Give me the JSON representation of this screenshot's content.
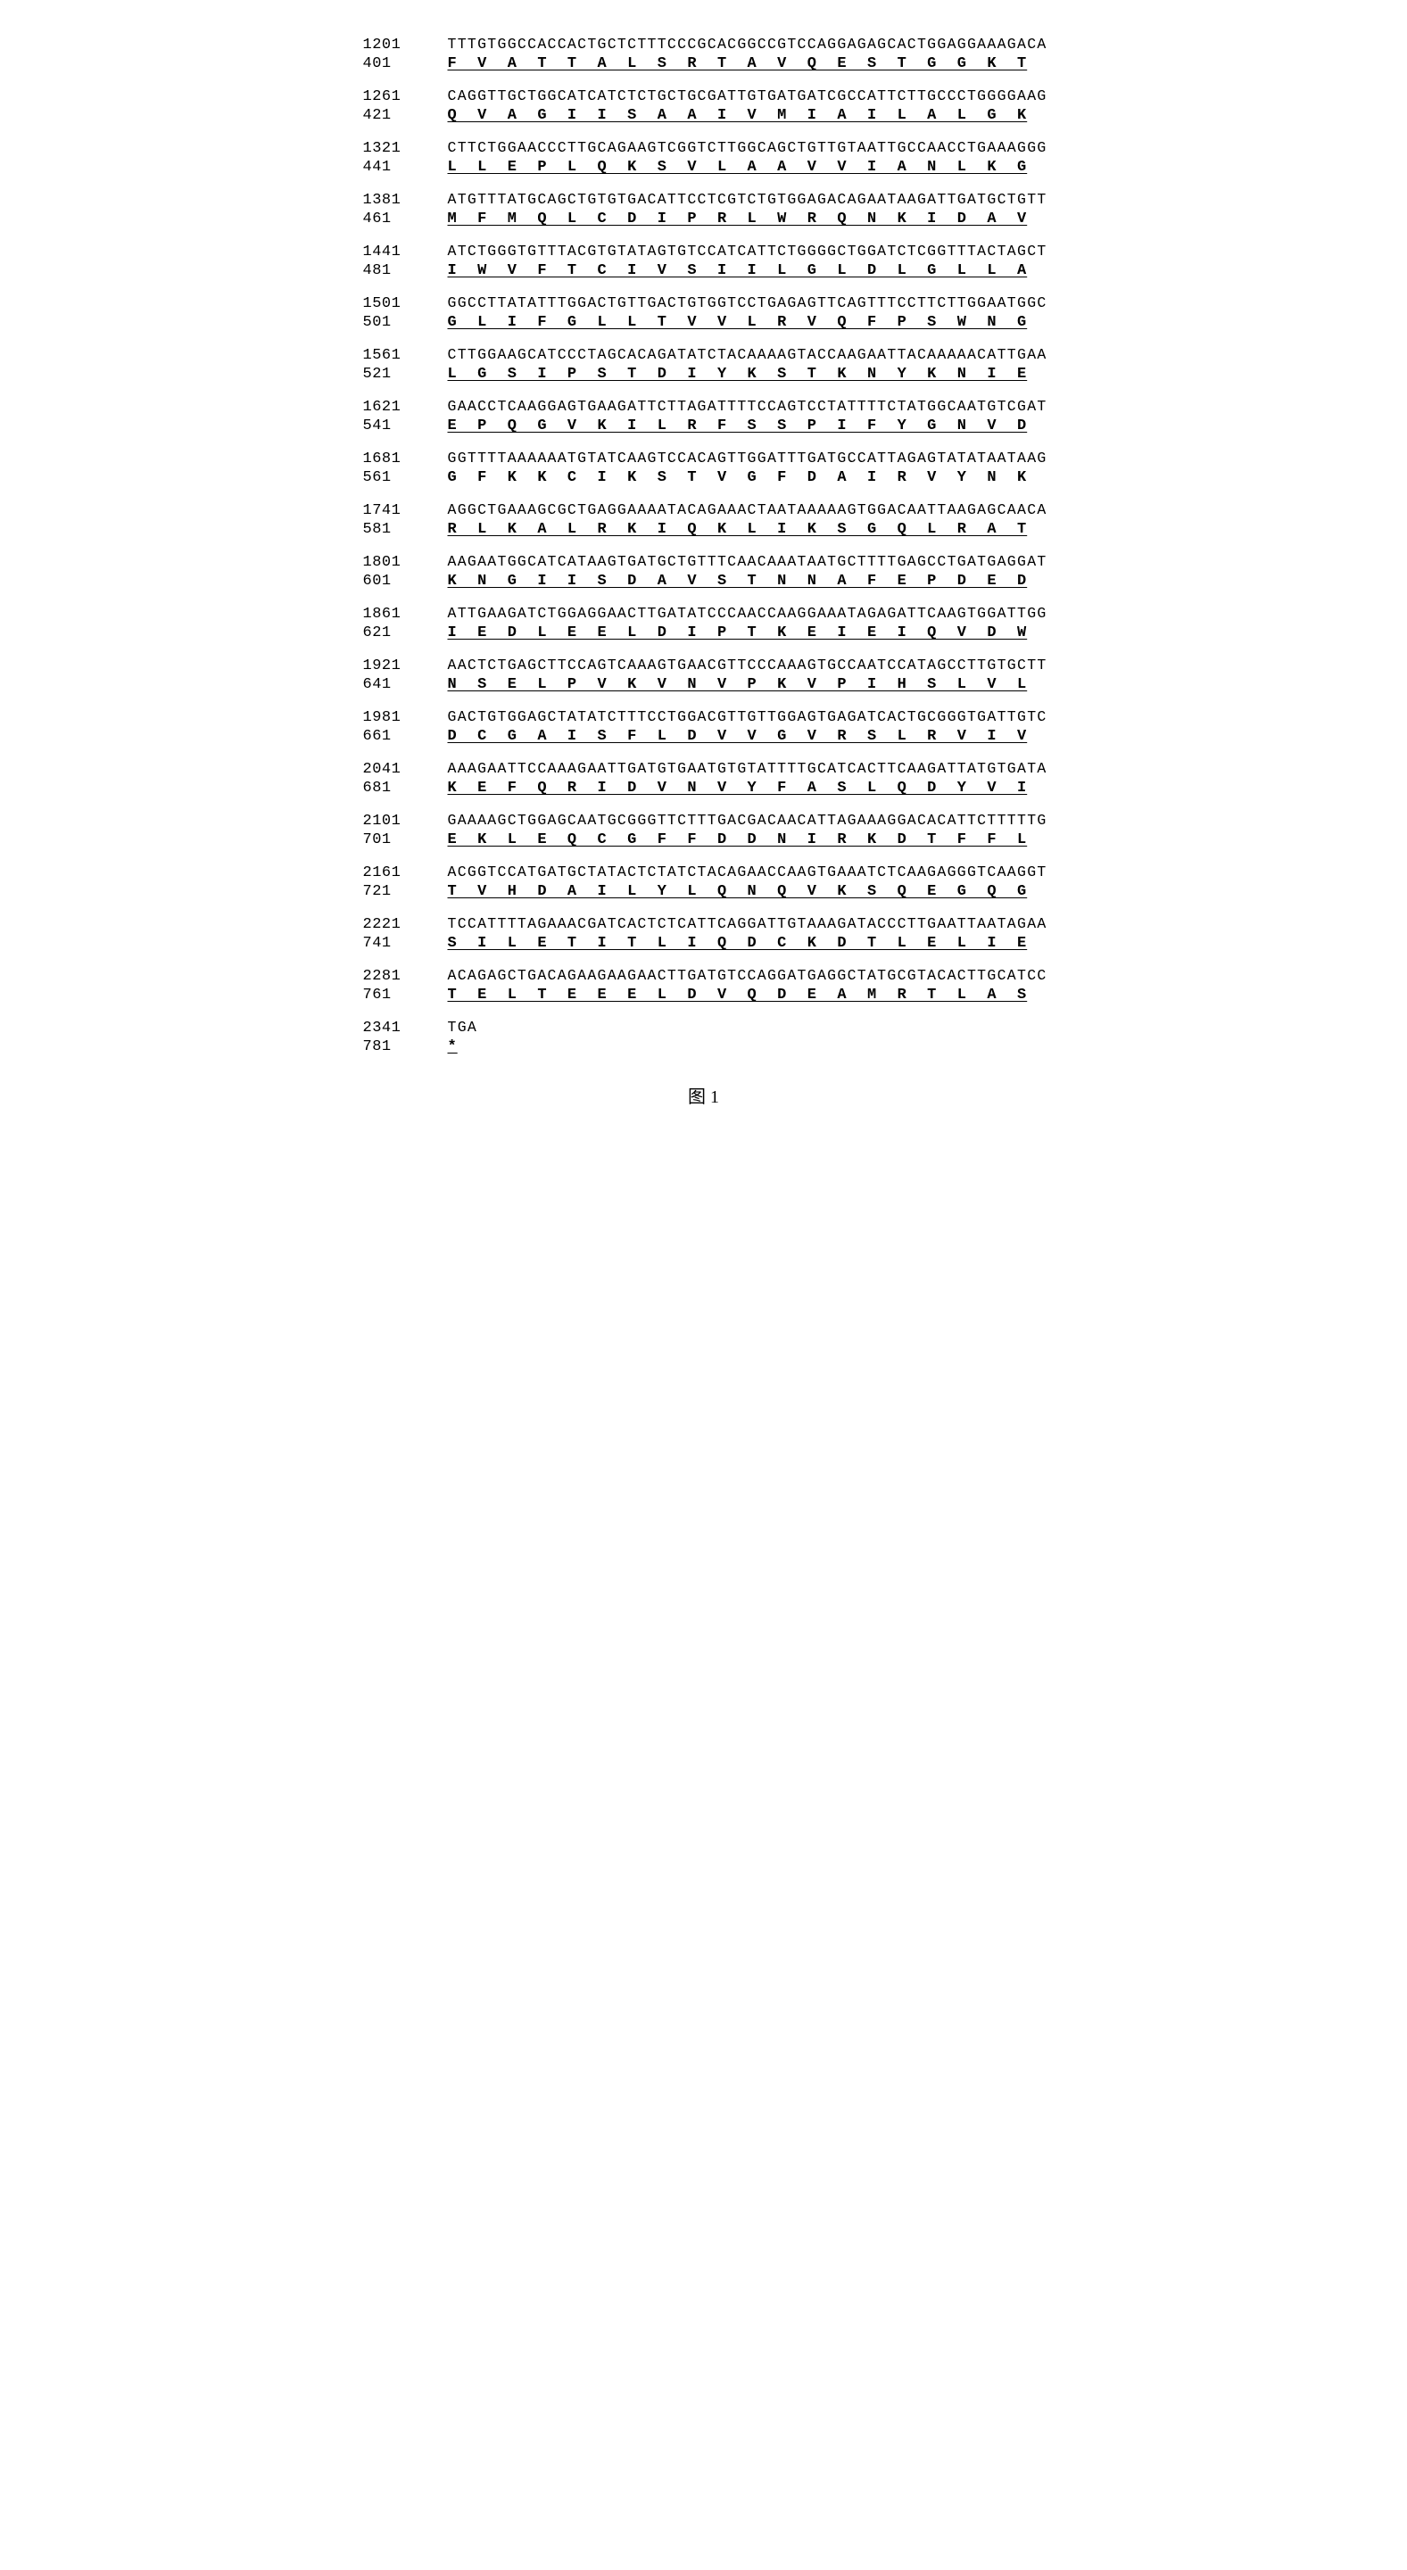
{
  "figure_label": "图 1",
  "style": {
    "font_family": "Courier New",
    "nucleotide_fontsize": 16.5,
    "amino_fontsize": 17,
    "label_fontsize": 17,
    "bg_color": "#ffffff",
    "text_color": "#000000",
    "nucleotide_letter_spacing": 1.3,
    "amino_letter_spacing": 1
  },
  "blocks": [
    {
      "nuc_pos": "1201",
      "nuc_seq": "TTTGTGGCCACCACTGCTCTTTCCCGCACGGCCGTCCAGGAGAGCACTGGAGGAAAGACA",
      "aa_pos": "401",
      "aa_seq": "F  V  A  T  T  A  L  S  R  T  A  V  Q  E  S  T  G  G  K  T",
      "underline": true
    },
    {
      "nuc_pos": "1261",
      "nuc_seq": "CAGGTTGCTGGCATCATCTCTGCTGCGATTGTGATGATCGCCATTCTTGCCCTGGGGAAG",
      "aa_pos": "421",
      "aa_seq": "Q  V  A  G  I  I  S  A  A  I  V  M  I  A  I  L  A  L  G  K",
      "underline": true
    },
    {
      "nuc_pos": "1321",
      "nuc_seq": "CTTCTGGAACCCTTGCAGAAGTCGGTCTTGGCAGCTGTTGTAATTGCCAACCTGAAAGGG",
      "aa_pos": "441",
      "aa_seq": "L  L  E  P  L  Q  K  S  V  L  A  A  V  V  I  A  N  L  K  G",
      "underline": true
    },
    {
      "nuc_pos": "1381",
      "nuc_seq": "ATGTTTATGCAGCTGTGTGACATTCCTCGTCTGTGGAGACAGAATAAGATTGATGCTGTT",
      "aa_pos": "461",
      "aa_seq": "M  F  M  Q  L  C  D  I  P  R  L  W  R  Q  N  K  I  D  A  V",
      "underline": true
    },
    {
      "nuc_pos": "1441",
      "nuc_seq": "ATCTGGGTGTTTACGTGTATAGTGTCCATCATTCTGGGGCTGGATCTCGGTTTACTAGCT",
      "aa_pos": "481",
      "aa_seq": "I  W  V  F  T  C  I  V  S  I  I  L  G  L  D  L  G  L  L  A",
      "underline": true
    },
    {
      "nuc_pos": "1501",
      "nuc_seq": "GGCCTTATATTTGGACTGTTGACTGTGGTCCTGAGAGTTCAGTTTCCTTCTTGGAATGGC",
      "aa_pos": "501",
      "aa_seq": "G  L  I  F  G  L  L  T  V  V  L  R  V  Q  F  P  S  W  N  G",
      "underline": true
    },
    {
      "nuc_pos": "1561",
      "nuc_seq": "CTTGGAAGCATCCCTAGCACAGATATCTACAAAAGTACCAAGAATTACAAAAACATTGAA",
      "aa_pos": "521",
      "aa_seq": "L  G  S  I  P  S  T  D  I  Y  K  S  T  K  N  Y  K  N  I  E",
      "underline": true
    },
    {
      "nuc_pos": "1621",
      "nuc_seq": "GAACCTCAAGGAGTGAAGATTCTTAGATTTTCCAGTCCTATTTTCTATGGCAATGTCGAT",
      "aa_pos": "541",
      "aa_seq": "E  P  Q  G  V  K  I  L  R  F  S  S  P  I  F  Y  G  N  V  D",
      "underline": true
    },
    {
      "nuc_pos": "1681",
      "nuc_seq": "GGTTTTAAAAAATGTATCAAGTCCACAGTTGGATTTGATGCCATTAGAGTATATAATAAG",
      "aa_pos": "561",
      "aa_seq": "G  F  K  K  C  I  K  S  T  V  G  F  D  A  I  R  V  Y  N  K",
      "underline": false
    },
    {
      "nuc_pos": "1741",
      "nuc_seq": "AGGCTGAAAGCGCTGAGGAAAATACAGAAACTAATAAAAAGTGGACAATTAAGAGCAACA",
      "aa_pos": "581",
      "aa_seq": "R  L  K  A  L  R  K  I  Q  K  L  I  K  S  G  Q  L  R  A  T",
      "underline": true
    },
    {
      "nuc_pos": "1801",
      "nuc_seq": "AAGAATGGCATCATAAGTGATGCTGTTTCAACAAATAATGCTTTTGAGCCTGATGAGGAT",
      "aa_pos": "601",
      "aa_seq": "K  N  G  I  I  S  D  A  V  S  T  N  N  A  F  E  P  D  E  D",
      "underline": true
    },
    {
      "nuc_pos": "1861",
      "nuc_seq": "ATTGAAGATCTGGAGGAACTTGATATCCCAACCAAGGAAATAGAGATTCAAGTGGATTGG",
      "aa_pos": "621",
      "aa_seq": "I  E  D  L  E  E  L  D  I  P  T  K  E  I  E  I  Q  V  D  W",
      "underline": true
    },
    {
      "nuc_pos": "1921",
      "nuc_seq": "AACTCTGAGCTTCCAGTCAAAGTGAACGTTCCCAAAGTGCCAATCCATAGCCTTGTGCTT",
      "aa_pos": "641",
      "aa_seq": "N  S  E  L  P  V  K  V  N  V  P  K  V  P  I  H  S  L  V  L",
      "underline": true
    },
    {
      "nuc_pos": "1981",
      "nuc_seq": "GACTGTGGAGCTATATCTTTCCTGGACGTTGTTGGAGTGAGATCACTGCGGGTGATTGTC",
      "aa_pos": "661",
      "aa_seq": "D  C  G  A  I  S  F  L  D  V  V  G  V  R  S  L  R  V  I  V",
      "underline": true
    },
    {
      "nuc_pos": "2041",
      "nuc_seq": "AAAGAATTCCAAAGAATTGATGTGAATGTGTATTTTGCATCACTTCAAGATTATGTGATA",
      "aa_pos": "681",
      "aa_seq": "K  E  F  Q  R  I  D  V  N  V  Y  F  A  S  L  Q  D  Y  V  I",
      "underline": true
    },
    {
      "nuc_pos": "2101",
      "nuc_seq": "GAAAAGCTGGAGCAATGCGGGTTCTTTGACGACAACATTAGAAAGGACACATTCTTTTTG",
      "aa_pos": "701",
      "aa_seq": "E  K  L  E  Q  C  G  F  F  D  D  N  I  R  K  D  T  F  F  L",
      "underline": true
    },
    {
      "nuc_pos": "2161",
      "nuc_seq": "ACGGTCCATGATGCTATACTCTATCTACAGAACCAAGTGAAATCTCAAGAGGGTCAAGGT",
      "aa_pos": "721",
      "aa_seq": "T  V  H  D  A  I  L  Y  L  Q  N  Q  V  K  S  Q  E  G  Q  G",
      "underline": true
    },
    {
      "nuc_pos": "2221",
      "nuc_seq": "TCCATTTTAGAAACGATCACTCTCATTCAGGATTGTAAAGATACCCTTGAATTAATAGAA",
      "aa_pos": "741",
      "aa_seq": "S  I  L  E  T  I  T  L  I  Q  D  C  K  D  T  L  E  L  I  E",
      "underline": true
    },
    {
      "nuc_pos": "2281",
      "nuc_seq": "ACAGAGCTGACAGAAGAAGAACTTGATGTCCAGGATGAGGCTATGCGTACACTTGCATCC",
      "aa_pos": "761",
      "aa_seq": "T  E  L  T  E  E  E  L  D  V  Q  D  E  A  M  R  T  L  A  S",
      "underline": true
    },
    {
      "nuc_pos": "2341",
      "nuc_seq": "TGA",
      "aa_pos": "781",
      "aa_seq": "*",
      "underline": true
    }
  ]
}
